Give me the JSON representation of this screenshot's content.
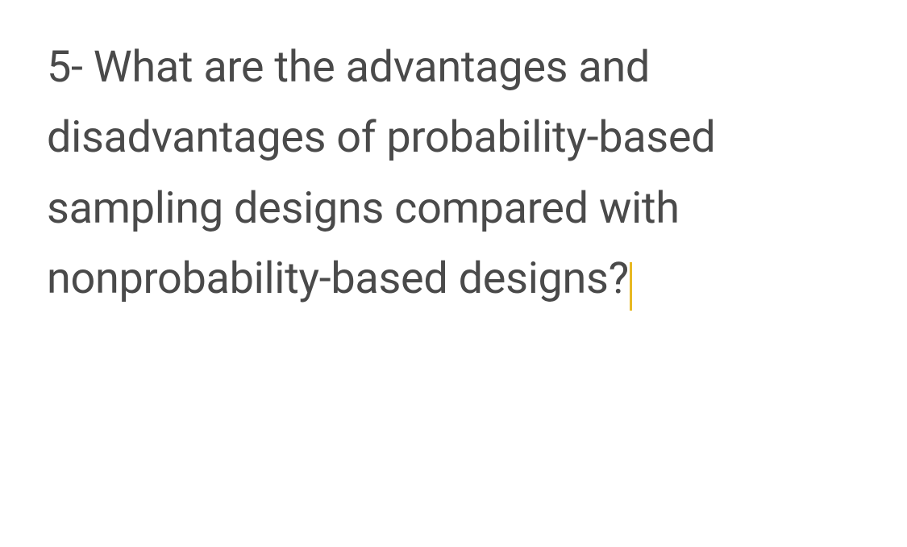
{
  "question": {
    "text": "5- What are the advantages and disadvantages of probability-based sampling designs compared with nonprobability-based designs?",
    "text_color": "#4a4a4a",
    "font_size": 54,
    "line_height": 1.62,
    "font_weight": 400
  },
  "cursor": {
    "color": "#e8b923",
    "width": 3,
    "height": 60
  },
  "background_color": "#ffffff"
}
